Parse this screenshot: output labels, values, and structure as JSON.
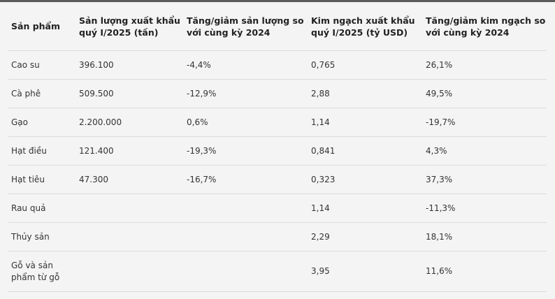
{
  "table": {
    "header": [
      "Sản phẩm",
      "Sản lượng xuất khẩu quý I/2025 (tấn)",
      "Tăng/giảm sản lượng so với cùng kỳ 2024",
      "Kim ngạch xuất khẩu quý I/2025 (tỷ USD)",
      "Tăng/giảm kim ngạch so với cùng kỳ 2024"
    ],
    "rows": [
      {
        "product": "Cao su",
        "volume": "396.100",
        "volume_change": "-4,4%",
        "value": "0,765",
        "value_change": "26,1%"
      },
      {
        "product": "Cà phê",
        "volume": "509.500",
        "volume_change": "-12,9%",
        "value": "2,88",
        "value_change": "49,5%"
      },
      {
        "product": "Gạo",
        "volume": "2.200.000",
        "volume_change": "0,6%",
        "value": "1,14",
        "value_change": "-19,7%"
      },
      {
        "product": "Hạt điều",
        "volume": "121.400",
        "volume_change": "-19,3%",
        "value": "0,841",
        "value_change": "4,3%"
      },
      {
        "product": "Hạt tiêu",
        "volume": "47.300",
        "volume_change": "-16,7%",
        "value": "0,323",
        "value_change": "37,3%"
      },
      {
        "product": "Rau quả",
        "value": "1,14",
        "value_change": "-11,3%"
      },
      {
        "product": "Thủy sản",
        "value": "2,29",
        "value_change": "18,1%"
      },
      {
        "product": "Gỗ và sản phẩm từ gỗ",
        "value": "3,95",
        "value_change": "11,6%"
      }
    ]
  }
}
